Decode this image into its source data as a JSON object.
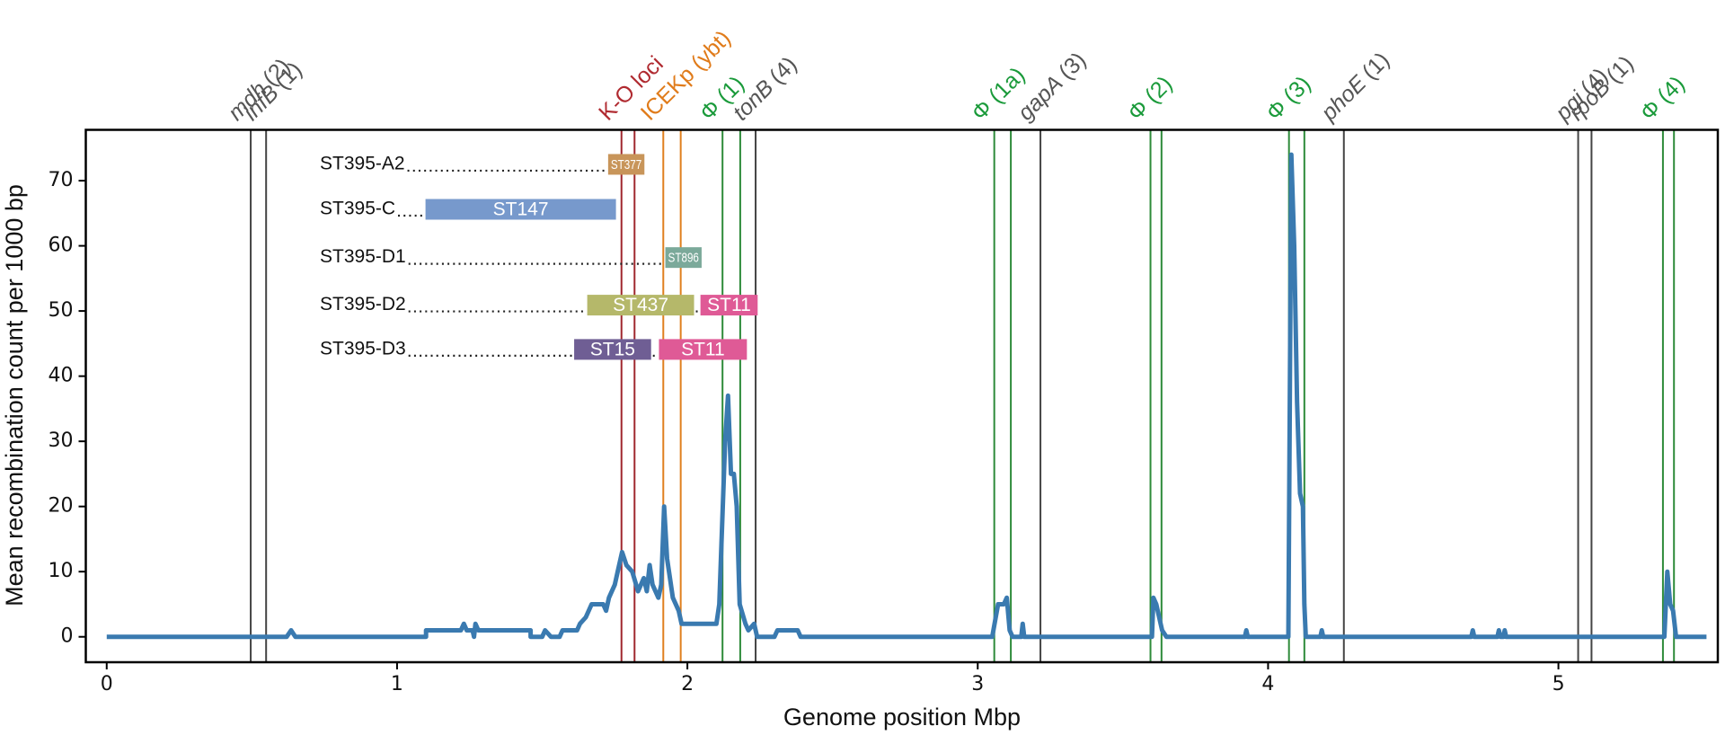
{
  "chart_data": {
    "type": "line",
    "xlabel": "Genome position Mbp",
    "ylabel": "Mean recombination count per 1000 bp",
    "xlim": [
      -0.072,
      5.549
    ],
    "ylim": [
      -3.9,
      77.8
    ],
    "xticks": [
      0,
      1,
      2,
      3,
      4,
      5
    ],
    "yticks": [
      0,
      10,
      20,
      30,
      40,
      50,
      60,
      70
    ],
    "series": [
      {
        "color": "#3a7ab0",
        "x": [
          0,
          0.62,
          0.635,
          0.65,
          1.1,
          1.1,
          1.22,
          1.23,
          1.24,
          1.26,
          1.265,
          1.27,
          1.28,
          1.46,
          1.46,
          1.5,
          1.51,
          1.53,
          1.56,
          1.57,
          1.62,
          1.63,
          1.65,
          1.67,
          1.71,
          1.72,
          1.73,
          1.75,
          1.76,
          1.775,
          1.79,
          1.81,
          1.83,
          1.85,
          1.86,
          1.87,
          1.88,
          1.9,
          1.91,
          1.92,
          1.93,
          1.95,
          1.97,
          1.98,
          2.1,
          2.11,
          2.13,
          2.14,
          2.15,
          2.16,
          2.17,
          2.18,
          2.2,
          2.21,
          2.23,
          2.24,
          2.3,
          2.31,
          2.38,
          2.39,
          3.05,
          3.07,
          3.09,
          3.1,
          3.11,
          3.12,
          3.15,
          3.155,
          3.16,
          3.6,
          3.605,
          3.615,
          3.625,
          3.635,
          3.65,
          3.92,
          3.925,
          3.93,
          4.07,
          4.08,
          4.09,
          4.1,
          4.11,
          4.12,
          4.125,
          4.13,
          4.18,
          4.185,
          4.19,
          4.7,
          4.705,
          4.71,
          4.79,
          4.795,
          4.8,
          4.81,
          4.815,
          4.82,
          5.365,
          5.375,
          5.385,
          5.395,
          5.405,
          5.51
        ],
        "values": [
          0,
          0,
          1,
          0,
          0,
          1,
          1,
          2,
          1,
          1,
          0,
          2,
          1,
          1,
          0,
          0,
          1,
          0,
          0,
          1,
          1,
          2,
          3,
          5,
          5,
          4,
          6,
          8,
          10,
          13,
          11,
          10,
          7,
          9,
          7,
          11,
          8,
          6,
          8,
          20,
          12,
          6,
          4,
          2,
          2,
          5,
          30,
          37,
          25,
          25,
          20,
          5,
          2,
          1,
          2,
          0,
          0,
          1,
          1,
          0,
          0,
          5,
          5,
          6,
          1,
          0,
          0,
          2,
          0,
          0,
          6,
          5,
          3,
          1,
          0,
          0,
          1,
          0,
          0,
          74,
          60,
          36,
          22,
          20,
          5,
          0,
          0,
          1,
          0,
          0,
          1,
          0,
          0,
          1,
          0,
          0,
          1,
          0,
          0,
          10,
          5,
          4,
          0,
          0
        ]
      }
    ],
    "loci": [
      {
        "label": "mdh",
        "suffix": "(2)",
        "italic": true,
        "color": "#555555",
        "line_color": "#444444",
        "positions": [
          0.496
        ]
      },
      {
        "label": "infB",
        "suffix": "(1)",
        "italic": true,
        "color": "#555555",
        "line_color": "#444444",
        "positions": [
          0.549
        ]
      },
      {
        "label": "K-O loci",
        "italic": false,
        "color": "#b02a30",
        "line_color": "#a0282e",
        "positions": [
          1.773,
          1.818
        ]
      },
      {
        "label": "ICEKp (ybt)",
        "italic": false,
        "color": "#e07b1a",
        "line_color": "#e0801f",
        "positions": [
          1.917,
          1.977
        ]
      },
      {
        "label": "Φ (1)",
        "italic": false,
        "color": "#1a9a3a",
        "line_color": "#2e8b3a",
        "positions": [
          2.121,
          2.182
        ]
      },
      {
        "label": "tonB",
        "suffix": "(4)",
        "italic": true,
        "color": "#555555",
        "line_color": "#444444",
        "positions": [
          2.235
        ]
      },
      {
        "label": "Φ (1a)",
        "italic": false,
        "color": "#1a9a3a",
        "line_color": "#2e8b3a",
        "positions": [
          3.057,
          3.114
        ]
      },
      {
        "label": "gapA",
        "suffix": "(3)",
        "italic": true,
        "color": "#555555",
        "line_color": "#444444",
        "positions": [
          3.216
        ]
      },
      {
        "label": "Φ (2)",
        "italic": false,
        "color": "#1a9a3a",
        "line_color": "#2e8b3a",
        "positions": [
          3.595,
          3.633
        ]
      },
      {
        "label": "Φ (3)",
        "italic": false,
        "color": "#1a9a3a",
        "line_color": "#2e8b3a",
        "positions": [
          4.072,
          4.125
        ]
      },
      {
        "label": "phoE",
        "suffix": "(1)",
        "italic": true,
        "color": "#555555",
        "line_color": "#444444",
        "positions": [
          4.261
        ]
      },
      {
        "label": "pgi",
        "suffix": "(4)",
        "italic": true,
        "color": "#555555",
        "line_color": "#444444",
        "positions": [
          5.068
        ]
      },
      {
        "label": "rpoB",
        "suffix": "(1)",
        "italic": true,
        "color": "#555555",
        "line_color": "#444444",
        "positions": [
          5.114
        ]
      },
      {
        "label": "Φ (4)",
        "italic": false,
        "color": "#1a9a3a",
        "line_color": "#2e8b3a",
        "positions": [
          5.36,
          5.398
        ]
      }
    ],
    "imports": [
      {
        "label": "ST395-A2",
        "y": 72.5,
        "segments": [
          {
            "label": "ST377",
            "start": 1.727,
            "end": 1.852,
            "color": "#c8955a"
          }
        ]
      },
      {
        "label": "ST395-C",
        "y": 65.6,
        "segments": [
          {
            "label": "ST147",
            "start": 1.098,
            "end": 1.754,
            "color": "#7799cc"
          }
        ]
      },
      {
        "label": "ST395-D1",
        "y": 58.2,
        "segments": [
          {
            "label": "ST896",
            "start": 1.924,
            "end": 2.049,
            "color": "#7ba99a"
          }
        ]
      },
      {
        "label": "ST395-D2",
        "y": 50.9,
        "segments": [
          {
            "label": "ST437",
            "start": 1.655,
            "end": 2.023,
            "color": "#b5b86a"
          },
          {
            "label": "ST11",
            "start": 2.045,
            "end": 2.242,
            "color": "#df5a96"
          }
        ]
      },
      {
        "label": "ST395-D3",
        "y": 44.1,
        "segments": [
          {
            "label": "ST15",
            "start": 1.61,
            "end": 1.875,
            "color": "#6f5e94"
          },
          {
            "label": "ST11",
            "start": 1.902,
            "end": 2.205,
            "color": "#df5a96"
          }
        ]
      }
    ]
  }
}
